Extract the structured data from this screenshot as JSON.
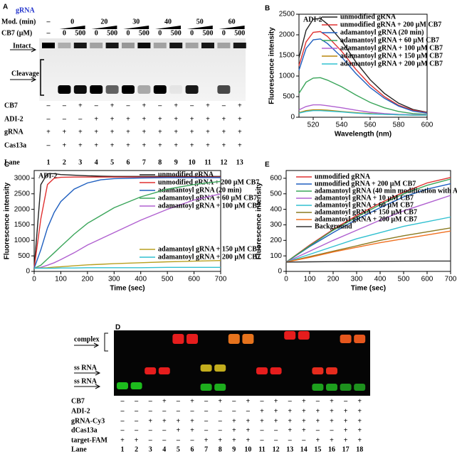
{
  "panel_a": {
    "letter": "A",
    "grna_label": "gRNA",
    "mod_label": "Mod. (min)",
    "cb7_label": "CB7 (µM)",
    "mod_values": [
      "–",
      "0",
      "20",
      "30",
      "40",
      "50",
      "60"
    ],
    "cb7_values": [
      "–",
      "0",
      "500",
      "0",
      "500",
      "0",
      "500",
      "0",
      "500",
      "0",
      "500",
      "0",
      "500"
    ],
    "intact": "Intact",
    "cleavage": "Cleavage",
    "rows": [
      {
        "name": "CB7",
        "signs": [
          "–",
          "–",
          "+",
          "–",
          "+",
          "–",
          "+",
          "–",
          "+",
          "–",
          "+",
          "–",
          "+"
        ]
      },
      {
        "name": "ADI-2",
        "signs": [
          "–",
          "–",
          "–",
          "+",
          "+",
          "+",
          "+",
          "+",
          "+",
          "+",
          "+",
          "+",
          "+"
        ]
      },
      {
        "name": "gRNA",
        "signs": [
          "+",
          "+",
          "+",
          "+",
          "+",
          "+",
          "+",
          "+",
          "+",
          "+",
          "+",
          "+",
          "+"
        ]
      },
      {
        "name": "Cas13a",
        "signs": [
          "–",
          "+",
          "+",
          "+",
          "+",
          "+",
          "+",
          "+",
          "+",
          "+",
          "+",
          "+",
          "+"
        ]
      }
    ],
    "lane_label": "Lane",
    "lanes": [
      1,
      2,
      3,
      4,
      5,
      6,
      7,
      8,
      9,
      10,
      11,
      12,
      13
    ]
  },
  "panel_d": {
    "letter": "D",
    "complex": "complex",
    "ss_rna_1": "ss RNA",
    "ss_rna_2": "ss RNA",
    "rows": [
      {
        "name": "CB7",
        "signs": [
          "–",
          "–",
          "–",
          "+",
          "–",
          "+",
          "–",
          "+",
          "–",
          "+",
          "–",
          "+",
          "–",
          "+",
          "–",
          "+",
          "–",
          "+"
        ]
      },
      {
        "name": "ADI-2",
        "signs": [
          "–",
          "–",
          "–",
          "–",
          "–",
          "–",
          "–",
          "–",
          "–",
          "–",
          "+",
          "+",
          "+",
          "+",
          "+",
          "+",
          "+",
          "+"
        ]
      },
      {
        "name": "gRNA-Cy3",
        "signs": [
          "–",
          "–",
          "+",
          "+",
          "+",
          "+",
          "–",
          "–",
          "+",
          "+",
          "+",
          "+",
          "+",
          "+",
          "+",
          "+",
          "+",
          "+"
        ]
      },
      {
        "name": "dCas13a",
        "signs": [
          "–",
          "–",
          "–",
          "–",
          "+",
          "+",
          "–",
          "–",
          "+",
          "+",
          "–",
          "–",
          "+",
          "+",
          "–",
          "–",
          "+",
          "+"
        ]
      },
      {
        "name": "target-FAM",
        "signs": [
          "+",
          "+",
          "–",
          "–",
          "–",
          "–",
          "+",
          "+",
          "+",
          "+",
          "–",
          "–",
          "–",
          "–",
          "+",
          "+",
          "+",
          "+"
        ]
      }
    ],
    "lane_label": "Lane",
    "lanes": [
      1,
      2,
      3,
      4,
      5,
      6,
      7,
      8,
      9,
      10,
      11,
      12,
      13,
      14,
      15,
      16,
      17,
      18
    ]
  },
  "chart_data": [
    {
      "type": "line",
      "panel": "B",
      "title": "ADI-2",
      "x_label": "Wavelength (nm)",
      "y_label": "Fluorescence intensity",
      "x": [
        510,
        515,
        520,
        525,
        530,
        540,
        550,
        560,
        570,
        580,
        590,
        600
      ],
      "xlim": [
        510,
        600
      ],
      "xticks": [
        520,
        540,
        560,
        580,
        600
      ],
      "ylim": [
        0,
        2500
      ],
      "yticks": [
        0,
        500,
        1000,
        1500,
        2000,
        2500
      ],
      "series": [
        {
          "name": "unmodified gRNA",
          "color": "#222222",
          "values": [
            1440,
            2110,
            2380,
            2400,
            2260,
            1850,
            1340,
            910,
            580,
            340,
            190,
            120
          ]
        },
        {
          "name": "unmodified gRNA + 200 µM CB7",
          "color": "#e03030",
          "values": [
            1250,
            1830,
            2060,
            2080,
            1960,
            1600,
            1160,
            790,
            500,
            290,
            170,
            110
          ]
        },
        {
          "name": "adamantoyl gRNA (20 min)",
          "color": "#1f5fbf",
          "values": [
            1140,
            1670,
            1880,
            1900,
            1790,
            1460,
            1060,
            720,
            460,
            270,
            150,
            100
          ]
        },
        {
          "name": "adamantoyl gRNA + 60 µM CB7",
          "color": "#3aa55a",
          "values": [
            580,
            850,
            950,
            960,
            900,
            740,
            540,
            360,
            230,
            140,
            90,
            70
          ]
        },
        {
          "name": "adamantoyl gRNA + 100 µM CB7",
          "color": "#b060d0",
          "values": [
            180,
            260,
            300,
            300,
            280,
            230,
            170,
            120,
            90,
            70,
            60,
            60
          ]
        },
        {
          "name": "adamantoyl gRNA + 150 µM CB7",
          "color": "#b8860b",
          "values": [
            110,
            160,
            180,
            180,
            170,
            140,
            110,
            90,
            70,
            60,
            50,
            50
          ]
        },
        {
          "name": "adamantoyl gRNA + 200 µM CB7",
          "color": "#30c0d0",
          "values": [
            100,
            140,
            160,
            160,
            150,
            130,
            100,
            80,
            70,
            60,
            50,
            50
          ]
        }
      ]
    },
    {
      "type": "line",
      "panel": "C",
      "title": "ADI-2",
      "x_label": "Time (sec)",
      "y_label": "Fluorescence intensity",
      "x": [
        0,
        25,
        50,
        75,
        100,
        150,
        200,
        250,
        300,
        400,
        500,
        600,
        700
      ],
      "xlim": [
        0,
        700
      ],
      "xticks": [
        0,
        100,
        200,
        300,
        400,
        500,
        600,
        700
      ],
      "ylim": [
        0,
        3250
      ],
      "yticks": [
        0,
        500,
        1000,
        1500,
        2000,
        2500,
        3000
      ],
      "series": [
        {
          "name": "unmodified gRNA",
          "color": "#222222",
          "values": [
            100,
            2800,
            3150,
            3150,
            3120,
            3100,
            3080,
            3070,
            3060,
            3060,
            3060,
            3060,
            3060
          ]
        },
        {
          "name": "unmodified gRNA + 200 µM CB7",
          "color": "#e03030",
          "values": [
            100,
            1700,
            2800,
            3000,
            3030,
            3040,
            3040,
            3040,
            3040,
            3040,
            3040,
            3040,
            3040
          ]
        },
        {
          "name": "adamantoyl gRNA (20 min)",
          "color": "#1f5fbf",
          "values": [
            100,
            700,
            1400,
            1900,
            2250,
            2650,
            2850,
            2950,
            2990,
            3010,
            3020,
            3020,
            3020
          ]
        },
        {
          "name": "adamantoyl gRNA + 60 µM CB7",
          "color": "#3aa55a",
          "values": [
            100,
            200,
            400,
            600,
            800,
            1200,
            1550,
            1800,
            2050,
            2400,
            2650,
            2800,
            2900
          ]
        },
        {
          "name": "adamantoyl gRNA + 100 µM CB7",
          "color": "#b060d0",
          "values": [
            100,
            130,
            200,
            280,
            380,
            600,
            850,
            1050,
            1250,
            1650,
            2000,
            2300,
            2500
          ]
        },
        {
          "name": "adamantoyl gRNA + 150 µM CB7",
          "color": "#b8a020",
          "values": [
            100,
            110,
            120,
            140,
            150,
            180,
            210,
            230,
            250,
            280,
            310,
            330,
            350
          ]
        },
        {
          "name": "adamantoyl gRNA + 200 µM CB7",
          "color": "#30c0d0",
          "values": [
            100,
            100,
            100,
            100,
            110,
            110,
            120,
            120,
            120,
            120,
            130,
            130,
            130
          ]
        }
      ]
    },
    {
      "type": "line",
      "panel": "E",
      "x_label": "Time (sec)",
      "y_label": "Fluorescence intensity",
      "x": [
        0,
        100,
        200,
        300,
        400,
        500,
        600,
        700
      ],
      "xlim": [
        0,
        700
      ],
      "xticks": [
        0,
        100,
        200,
        300,
        400,
        500,
        600,
        700
      ],
      "ylim": [
        0,
        650
      ],
      "yticks": [
        0,
        100,
        200,
        300,
        400,
        500,
        600
      ],
      "series": [
        {
          "name": "unmodified gRNA",
          "color": "#e03030",
          "values": [
            60,
            170,
            270,
            360,
            440,
            510,
            570,
            605
          ]
        },
        {
          "name": "unmodified gRNA + 200 µM CB7",
          "color": "#1f5fbf",
          "values": [
            60,
            160,
            250,
            335,
            410,
            480,
            530,
            565
          ]
        },
        {
          "name": "adamantoyl gRNA (40 min modification with ADI-2)",
          "color": "#3aa55a",
          "values": [
            60,
            165,
            265,
            350,
            430,
            500,
            555,
            595
          ]
        },
        {
          "name": "adamantoyl gRNA + 10 µM CB7",
          "color": "#b060d0",
          "values": [
            60,
            130,
            200,
            265,
            330,
            390,
            440,
            490
          ]
        },
        {
          "name": "adamantoyl gRNA + 60 µM CB7",
          "color": "#30c0d0",
          "values": [
            60,
            110,
            160,
            210,
            250,
            290,
            320,
            350
          ]
        },
        {
          "name": "adamantoyl gRNA + 150 µM CB7",
          "color": "#8a7a20",
          "values": [
            60,
            95,
            130,
            165,
            200,
            230,
            255,
            280
          ]
        },
        {
          "name": "adamantoyl gRNA + 200 µM CB7",
          "color": "#f07020",
          "values": [
            60,
            90,
            125,
            155,
            185,
            210,
            235,
            260
          ]
        },
        {
          "name": "Background",
          "color": "#333333",
          "values": [
            60,
            62,
            63,
            64,
            65,
            66,
            67,
            67
          ]
        }
      ]
    }
  ]
}
